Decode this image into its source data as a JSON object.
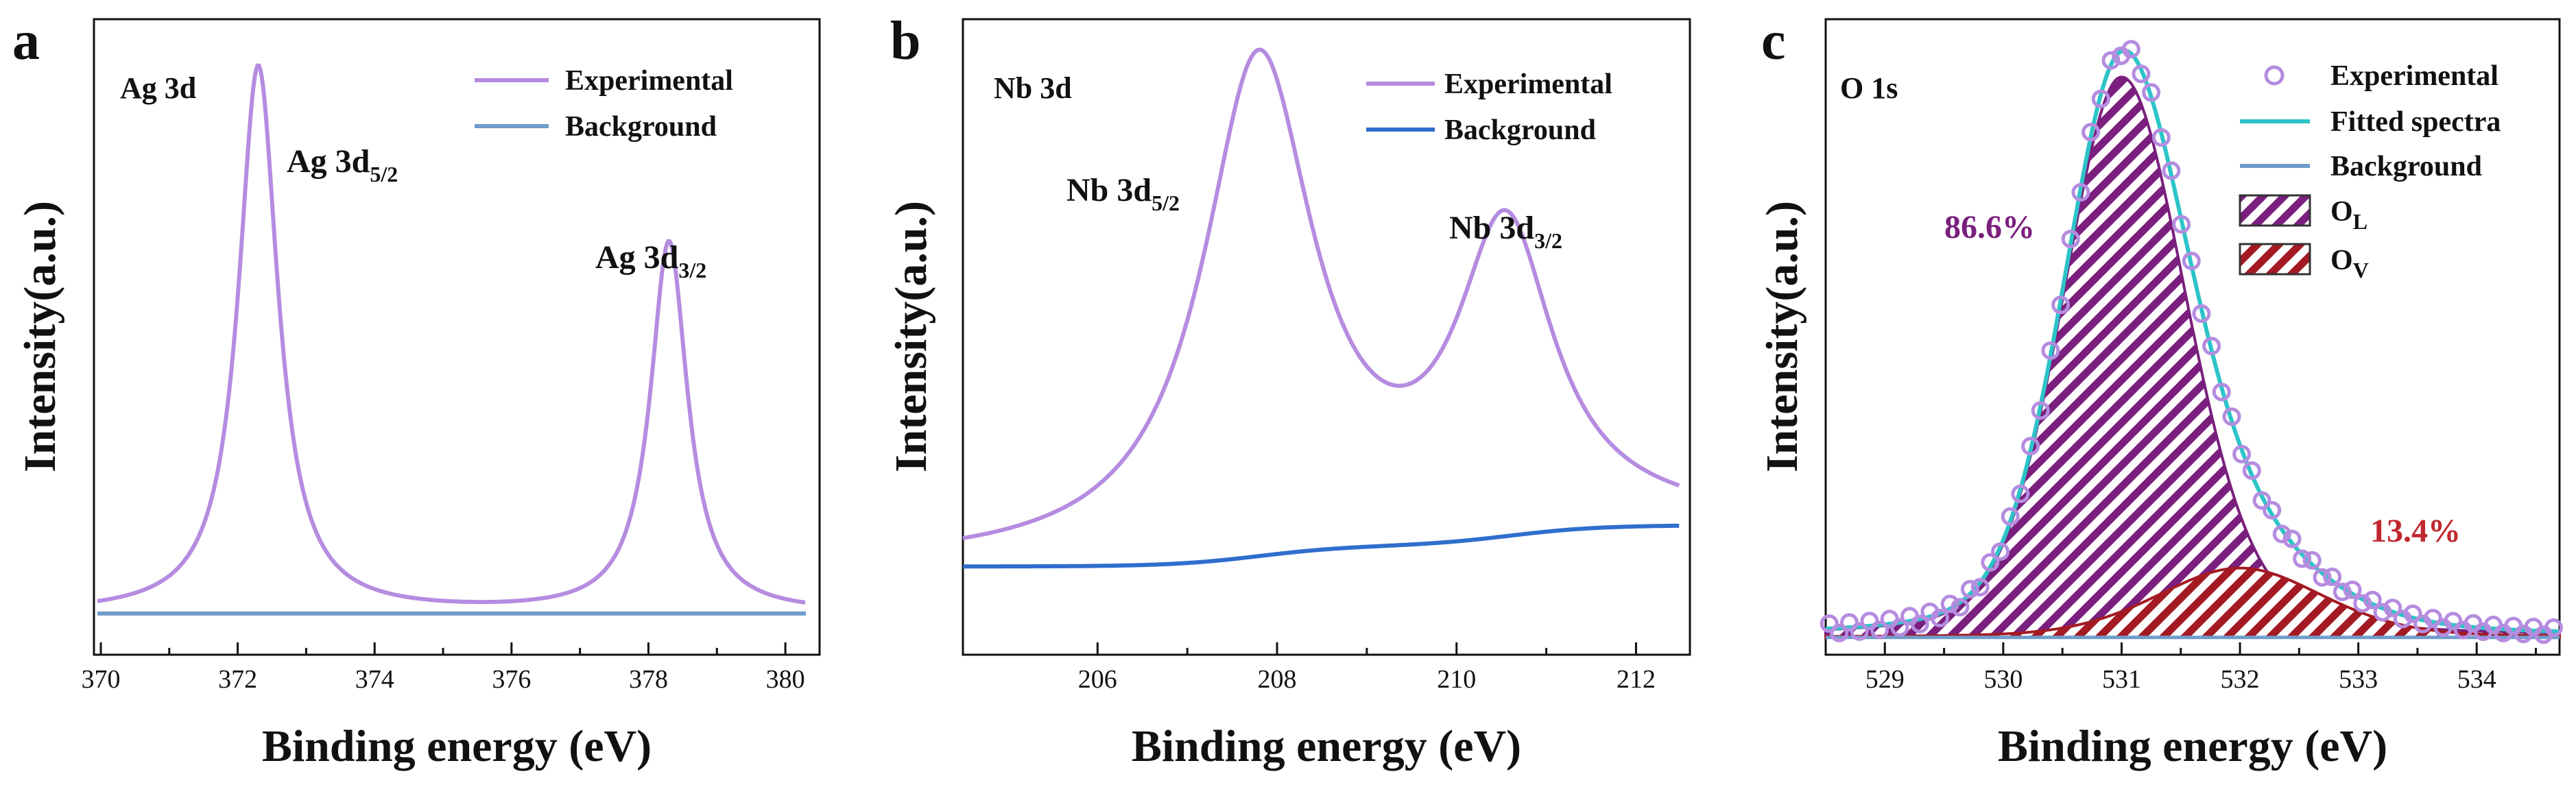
{
  "colors": {
    "experimental": "#b58ce0",
    "background_line": "#6f9ccb",
    "background_line_b": "#2f6ecd",
    "fitted": "#2cc4c9",
    "ol_fill": "#7a1f7e",
    "ov_fill": "#a31a22",
    "ol_label": "#7a1f7e",
    "ov_label": "#c0272d"
  },
  "chart_data": [
    {
      "panel": "a",
      "type": "line",
      "title": "Ag 3d",
      "xlabel": "Binding energy (eV)",
      "ylabel": "Intensity(a.u.)",
      "xlim": [
        369.9,
        380.5
      ],
      "ylim": [
        0,
        1.08
      ],
      "xticks": [
        370,
        372,
        374,
        376,
        378,
        380
      ],
      "background_level": 0.07,
      "legend": [
        "Experimental",
        "Background"
      ],
      "peaks": [
        {
          "name": "Ag 3d",
          "sub": "5/2",
          "center": 372.3,
          "height": 1.0,
          "width": 0.35
        },
        {
          "name": "Ag 3d",
          "sub": "3/2",
          "center": 378.3,
          "height": 0.7,
          "width": 0.33
        }
      ]
    },
    {
      "panel": "b",
      "type": "line",
      "title": "Nb 3d",
      "xlabel": "Binding energy (eV)",
      "ylabel": "Intensity(a.u.)",
      "xlim": [
        204.5,
        212.6
      ],
      "ylim": [
        0,
        1.08
      ],
      "xticks": [
        206,
        208,
        210,
        212
      ],
      "background_range": [
        0.15,
        0.22
      ],
      "legend": [
        "Experimental",
        "Background"
      ],
      "peaks": [
        {
          "name": "Nb 3d",
          "sub": "5/2",
          "center": 207.8,
          "height": 1.0,
          "width": 0.75
        },
        {
          "name": "Nb 3d",
          "sub": "3/2",
          "center": 210.55,
          "height": 0.7,
          "width": 0.65
        }
      ]
    },
    {
      "panel": "c",
      "type": "line",
      "title": "O 1s",
      "xlabel": "Binding energy (eV)",
      "ylabel": "Intensity(a.u.)",
      "xlim": [
        528.5,
        534.7
      ],
      "ylim": [
        0,
        1.1
      ],
      "xticks": [
        529,
        530,
        531,
        532,
        533,
        534
      ],
      "background_level": 0.03,
      "legend": [
        "Experimental",
        "Fitted spectra",
        "Background",
        "O",
        "O"
      ],
      "legend_subs": [
        "L",
        "V"
      ],
      "components": [
        {
          "name": "O",
          "sub": "L",
          "center": 531.0,
          "height": 1.0,
          "sigma_left": 0.5,
          "sigma_right": 0.55,
          "percent": "86.6%"
        },
        {
          "name": "O",
          "sub": "V",
          "center": 532.0,
          "height": 0.12,
          "sigma_left": 0.7,
          "sigma_right": 0.7,
          "percent": "13.4%"
        }
      ]
    }
  ]
}
